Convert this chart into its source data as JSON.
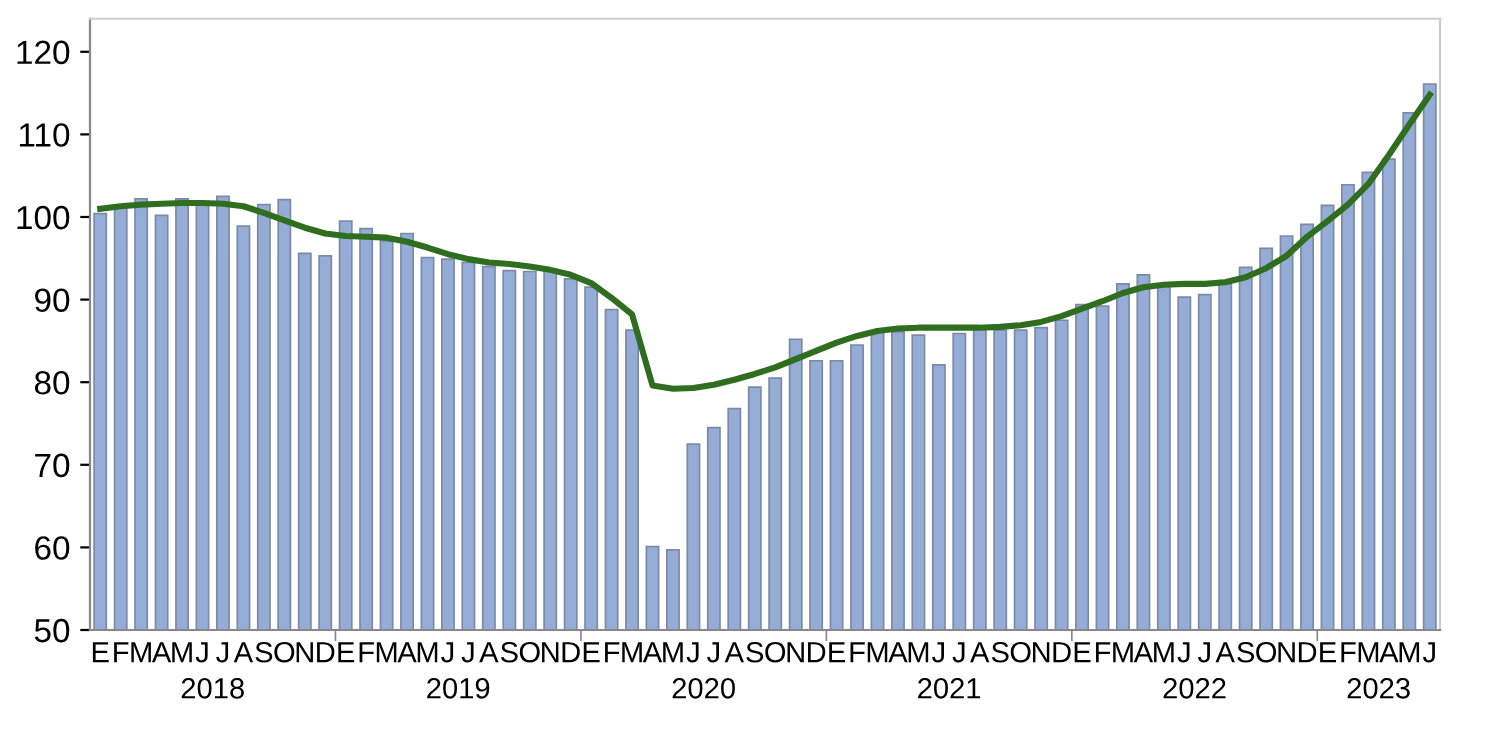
{
  "chart_data": {
    "type": "bar",
    "categories": [
      "E",
      "F",
      "M",
      "A",
      "M",
      "J",
      "J",
      "A",
      "S",
      "O",
      "N",
      "D",
      "E",
      "F",
      "M",
      "A",
      "M",
      "J",
      "J",
      "A",
      "S",
      "O",
      "N",
      "D",
      "E",
      "F",
      "M",
      "A",
      "M",
      "J",
      "J",
      "A",
      "S",
      "O",
      "N",
      "D",
      "E",
      "F",
      "M",
      "A",
      "M",
      "J",
      "J",
      "A",
      "S",
      "O",
      "N",
      "D",
      "E",
      "F",
      "M",
      "A",
      "M",
      "J",
      "J",
      "A",
      "S",
      "O",
      "N",
      "D",
      "E",
      "F",
      "M",
      "A",
      "M",
      "J"
    ],
    "series": [
      {
        "color": "#95acd6",
        "values": [
          100.4,
          101.2,
          102.2,
          100.2,
          102.2,
          101.7,
          102.5,
          98.9,
          101.5,
          102.1,
          95.6,
          95.3,
          99.5,
          98.6,
          97.1,
          98.0,
          95.1,
          94.9,
          94.5,
          94.0,
          93.5,
          93.4,
          93.7,
          92.5,
          91.5,
          88.8,
          86.3,
          60.1,
          59.7,
          72.5,
          74.5,
          76.8,
          79.4,
          80.5,
          85.2,
          82.6,
          82.6,
          84.5,
          86.1,
          86.1,
          85.7,
          82.1,
          85.9,
          86.6,
          86.3,
          86.3,
          86.6,
          87.5,
          89.4,
          89.2,
          91.9,
          93.0,
          91.9,
          90.3,
          90.6,
          92.3,
          93.9,
          96.2,
          97.7,
          99.1,
          101.4,
          103.9,
          105.4,
          107.0,
          112.6,
          116.1
        ]
      },
      {
        "type": "line",
        "color": "#2e6e1e",
        "values": [
          101.0,
          101.3,
          101.5,
          101.6,
          101.7,
          101.7,
          101.6,
          101.3,
          100.5,
          99.6,
          98.7,
          98.0,
          97.7,
          97.6,
          97.5,
          97.0,
          96.3,
          95.5,
          94.9,
          94.5,
          94.3,
          94.0,
          93.6,
          93.0,
          92.0,
          90.2,
          88.2,
          79.6,
          79.2,
          79.3,
          79.7,
          80.3,
          81.0,
          81.8,
          82.8,
          83.8,
          84.8,
          85.6,
          86.2,
          86.5,
          86.6,
          86.6,
          86.6,
          86.6,
          86.7,
          86.9,
          87.3,
          88.0,
          88.9,
          89.8,
          90.8,
          91.5,
          91.8,
          91.9,
          91.9,
          92.1,
          92.7,
          93.8,
          95.3,
          97.6,
          99.5,
          101.5,
          104.0,
          107.5,
          111.2,
          114.8
        ]
      }
    ],
    "annotations": [
      "2018",
      "2019",
      "2020",
      "2021",
      "2022",
      "2023"
    ],
    "ylim": [
      50,
      124
    ],
    "yticks": [
      50,
      60,
      70,
      80,
      90,
      100,
      110,
      120
    ],
    "grid": false,
    "legend": false,
    "marker": "none",
    "line_style": "solid"
  }
}
